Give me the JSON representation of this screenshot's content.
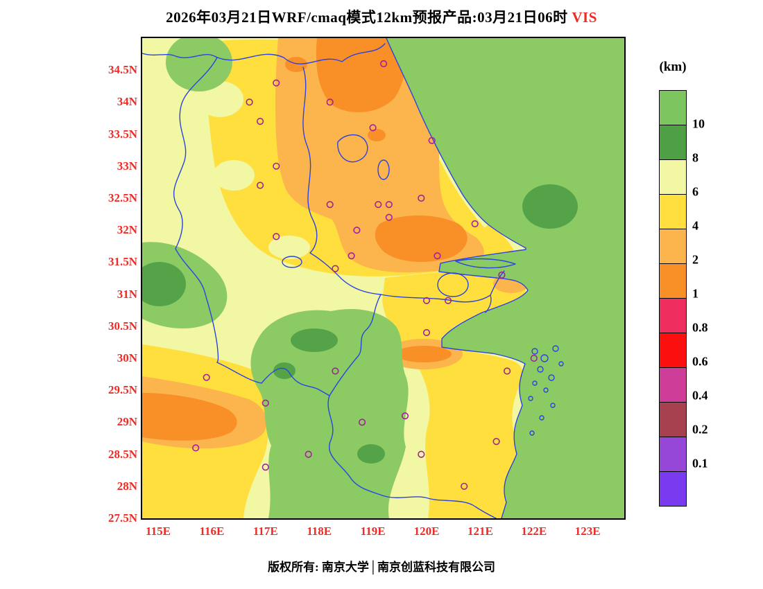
{
  "title": {
    "main": "2026年03月21日WRF/cmaq模式12km预报产品:03月21日06时",
    "highlight": " VIS",
    "highlight_color": "#ee2b24"
  },
  "axes": {
    "label_color": "#ee2b24",
    "lat_ticks": [
      "34.5N",
      "34N",
      "33.5N",
      "33N",
      "32.5N",
      "32N",
      "31.5N",
      "31N",
      "30.5N",
      "30N",
      "29.5N",
      "29N",
      "28.5N",
      "28N",
      "27.5N"
    ],
    "lon_ticks": [
      "115E",
      "116E",
      "117E",
      "118E",
      "119E",
      "120E",
      "121E",
      "122E",
      "123E"
    ]
  },
  "colorbar": {
    "unit_label": "(km)",
    "tick_labels": [
      "10",
      "8",
      "6",
      "4",
      "2",
      "1",
      "0.8",
      "0.6",
      "0.4",
      "0.2",
      "0.1"
    ],
    "colors_top_to_bottom": [
      "#7dc55e",
      "#4f9f45",
      "#f2f7a3",
      "#ffdf3d",
      "#fcb44c",
      "#f98f27",
      "#ef2d5e",
      "#fb0f0f",
      "#ce3d98",
      "#a8414f",
      "#9747d8",
      "#7a3bf0"
    ]
  },
  "map": {
    "palette": {
      "ocean_green": "#8cca63",
      "dark_green": "#55a349",
      "pale_yellow": "#f2f7a3",
      "yellow": "#ffdf3d",
      "light_orange": "#fcb44c",
      "orange": "#f98f27"
    },
    "boundary_color": "#2b43e0",
    "station_color": "#a2209e",
    "stations": [
      [
        116.7,
        34.0
      ],
      [
        118.2,
        34.0
      ],
      [
        117.2,
        34.3
      ],
      [
        119.2,
        34.6
      ],
      [
        116.9,
        33.7
      ],
      [
        119.0,
        33.6
      ],
      [
        120.1,
        33.4
      ],
      [
        117.2,
        33.0
      ],
      [
        116.9,
        32.7
      ],
      [
        118.2,
        32.4
      ],
      [
        119.1,
        32.4
      ],
      [
        119.3,
        32.4
      ],
      [
        119.9,
        32.5
      ],
      [
        118.7,
        32.0
      ],
      [
        120.9,
        32.1
      ],
      [
        119.3,
        32.2
      ],
      [
        117.2,
        31.9
      ],
      [
        120.2,
        31.6
      ],
      [
        118.3,
        31.4
      ],
      [
        118.6,
        31.6
      ],
      [
        121.4,
        31.3
      ],
      [
        120.0,
        30.9
      ],
      [
        120.4,
        30.9
      ],
      [
        115.9,
        29.7
      ],
      [
        118.3,
        29.8
      ],
      [
        120.0,
        30.4
      ],
      [
        119.6,
        29.1
      ],
      [
        117.0,
        29.3
      ],
      [
        118.8,
        29.0
      ],
      [
        115.7,
        28.6
      ],
      [
        117.8,
        28.5
      ],
      [
        117.0,
        28.3
      ],
      [
        121.3,
        28.7
      ],
      [
        122.0,
        30.0
      ],
      [
        121.5,
        29.8
      ],
      [
        120.7,
        28.0
      ],
      [
        119.9,
        28.5
      ]
    ]
  },
  "footer": {
    "text": "版权所有: 南京大学│南京创蓝科技有限公司"
  }
}
